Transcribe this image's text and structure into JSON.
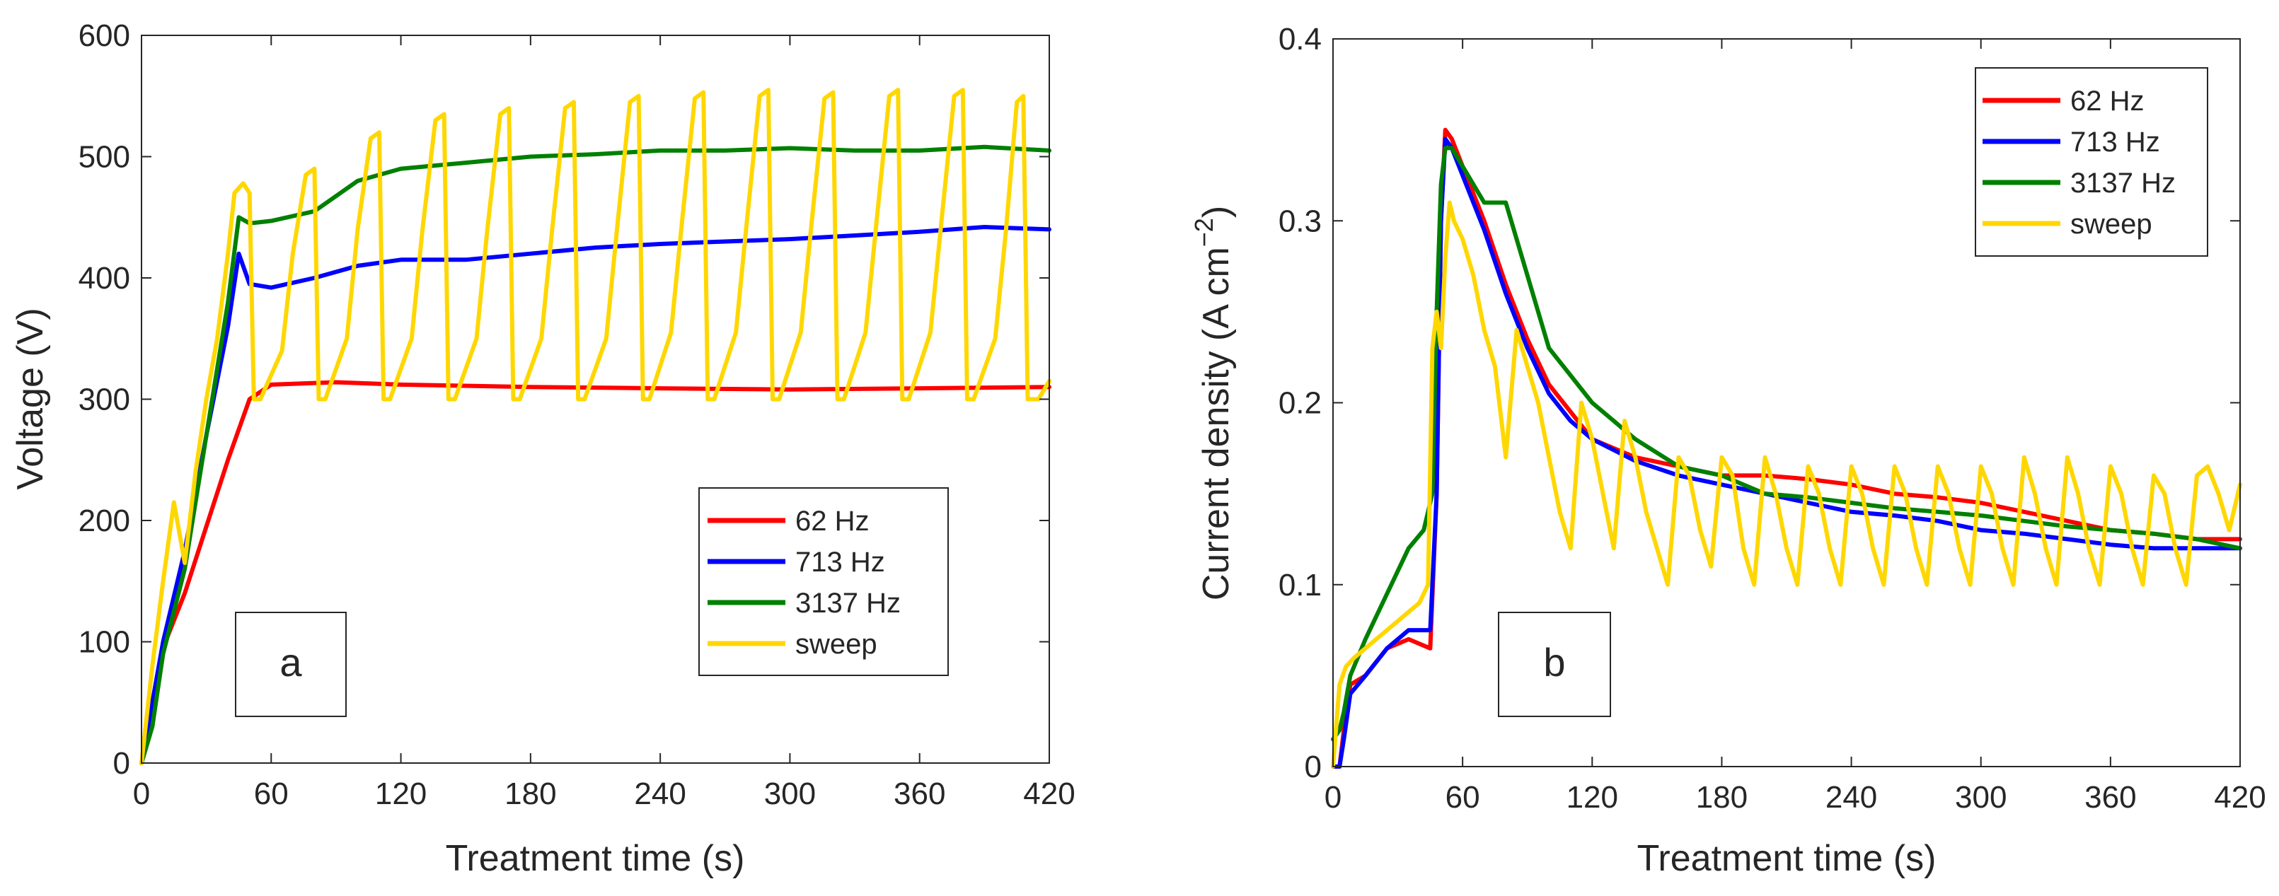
{
  "colors": {
    "s62": "#ff0000",
    "s713": "#0000ff",
    "s3137": "#008000",
    "sweep": "#ffd700",
    "axis": "#262626"
  },
  "chart_data": [
    {
      "id": "a",
      "type": "line",
      "panel_label": "a",
      "title": "",
      "xlabel": "Treatment time (s)",
      "ylabel": "Voltage (V)",
      "xlim": [
        0,
        420
      ],
      "ylim": [
        0,
        600
      ],
      "xticks": [
        0,
        60,
        120,
        180,
        240,
        300,
        360,
        420
      ],
      "yticks": [
        0,
        100,
        200,
        300,
        400,
        500,
        600
      ],
      "ytick_labels": [
        "0",
        "100",
        "200",
        "300",
        "400",
        "500",
        "600"
      ],
      "legend_position": "bottom-right",
      "series": [
        {
          "name": "62 Hz",
          "color_key": "s62",
          "x": [
            0,
            5,
            10,
            20,
            30,
            40,
            50,
            60,
            90,
            120,
            180,
            240,
            300,
            360,
            420
          ],
          "y": [
            0,
            50,
            95,
            140,
            195,
            250,
            300,
            312,
            314,
            312,
            310,
            309,
            308,
            309,
            310
          ]
        },
        {
          "name": "713 Hz",
          "color_key": "s713",
          "x": [
            0,
            5,
            10,
            20,
            30,
            40,
            45,
            50,
            60,
            80,
            100,
            120,
            150,
            180,
            210,
            240,
            270,
            300,
            330,
            360,
            390,
            420
          ],
          "y": [
            0,
            50,
            100,
            175,
            270,
            360,
            420,
            395,
            392,
            400,
            410,
            415,
            415,
            420,
            425,
            428,
            430,
            432,
            435,
            438,
            442,
            440
          ]
        },
        {
          "name": "3137 Hz",
          "color_key": "s3137",
          "x": [
            0,
            5,
            10,
            20,
            30,
            40,
            45,
            50,
            60,
            80,
            100,
            120,
            150,
            180,
            210,
            240,
            270,
            300,
            330,
            360,
            390,
            420
          ],
          "y": [
            0,
            30,
            90,
            160,
            270,
            380,
            450,
            445,
            447,
            455,
            480,
            490,
            495,
            500,
            502,
            505,
            505,
            507,
            505,
            505,
            508,
            505
          ]
        },
        {
          "name": "sweep",
          "color_key": "sweep",
          "x": [
            0,
            5,
            10,
            15,
            20,
            25,
            30,
            35,
            40,
            43,
            47,
            50,
            52,
            55,
            65,
            70,
            76,
            80,
            82,
            85,
            95,
            100,
            106,
            110,
            112,
            115,
            125,
            130,
            136,
            140,
            142,
            145,
            155,
            160,
            166,
            170,
            172,
            175,
            185,
            190,
            196,
            200,
            202,
            205,
            215,
            220,
            226,
            230,
            232,
            235,
            245,
            250,
            256,
            260,
            262,
            265,
            275,
            280,
            286,
            290,
            292,
            295,
            305,
            310,
            316,
            320,
            322,
            325,
            335,
            340,
            346,
            350,
            352,
            355,
            365,
            370,
            376,
            380,
            382,
            385,
            395,
            400,
            405,
            408,
            410,
            412,
            415,
            420
          ],
          "y": [
            0,
            80,
            150,
            215,
            165,
            240,
            300,
            350,
            420,
            470,
            478,
            470,
            300,
            300,
            340,
            420,
            485,
            490,
            300,
            300,
            350,
            440,
            515,
            520,
            300,
            300,
            350,
            440,
            530,
            535,
            300,
            300,
            350,
            440,
            535,
            540,
            300,
            300,
            350,
            440,
            540,
            545,
            300,
            300,
            350,
            440,
            545,
            550,
            300,
            300,
            355,
            445,
            548,
            553,
            300,
            300,
            355,
            445,
            550,
            555,
            300,
            300,
            355,
            445,
            548,
            553,
            300,
            300,
            355,
            445,
            550,
            555,
            300,
            300,
            355,
            445,
            550,
            555,
            300,
            300,
            350,
            440,
            545,
            550,
            300,
            300,
            300,
            315
          ]
        }
      ]
    },
    {
      "id": "b",
      "type": "line",
      "panel_label": "b",
      "title": "",
      "xlabel": "Treatment time (s)",
      "ylabel": "Current density (A cm",
      "ylabel_sup": "−2",
      "ylabel_end": ")",
      "xlim": [
        0,
        420
      ],
      "ylim": [
        0,
        0.4
      ],
      "xticks": [
        0,
        60,
        120,
        180,
        240,
        300,
        360,
        420
      ],
      "yticks": [
        0,
        0.1,
        0.2,
        0.3,
        0.4
      ],
      "ytick_labels": [
        "0",
        "0.1",
        "0.2",
        "0.3",
        "0.4"
      ],
      "legend_position": "top-right",
      "series": [
        {
          "name": "62 Hz",
          "color_key": "s62",
          "x": [
            0,
            3,
            5,
            8,
            15,
            25,
            35,
            45,
            48,
            50,
            52,
            55,
            60,
            70,
            80,
            90,
            100,
            110,
            120,
            140,
            160,
            180,
            200,
            220,
            240,
            260,
            280,
            300,
            320,
            340,
            360,
            380,
            400,
            420
          ],
          "y": [
            0,
            0.0,
            0.02,
            0.045,
            0.05,
            0.065,
            0.07,
            0.065,
            0.15,
            0.3,
            0.35,
            0.345,
            0.33,
            0.3,
            0.265,
            0.235,
            0.21,
            0.195,
            0.18,
            0.17,
            0.165,
            0.16,
            0.16,
            0.158,
            0.155,
            0.15,
            0.148,
            0.145,
            0.14,
            0.135,
            0.13,
            0.128,
            0.125,
            0.125
          ]
        },
        {
          "name": "713 Hz",
          "color_key": "s713",
          "x": [
            0,
            3,
            5,
            8,
            15,
            25,
            35,
            45,
            48,
            50,
            52,
            55,
            60,
            70,
            80,
            90,
            100,
            110,
            120,
            140,
            160,
            180,
            200,
            220,
            240,
            260,
            280,
            300,
            320,
            340,
            360,
            380,
            400,
            420
          ],
          "y": [
            0,
            0.0,
            0.015,
            0.04,
            0.05,
            0.065,
            0.075,
            0.075,
            0.15,
            0.3,
            0.345,
            0.34,
            0.325,
            0.295,
            0.26,
            0.23,
            0.205,
            0.19,
            0.18,
            0.168,
            0.16,
            0.155,
            0.15,
            0.145,
            0.14,
            0.138,
            0.135,
            0.13,
            0.128,
            0.125,
            0.122,
            0.12,
            0.12,
            0.12
          ]
        },
        {
          "name": "3137 Hz",
          "color_key": "s3137",
          "x": [
            0,
            3,
            5,
            8,
            15,
            25,
            35,
            42,
            46,
            48,
            50,
            52,
            55,
            60,
            70,
            80,
            90,
            100,
            110,
            120,
            140,
            160,
            180,
            200,
            220,
            240,
            260,
            280,
            300,
            320,
            340,
            360,
            380,
            400,
            420
          ],
          "y": [
            0.015,
            0.02,
            0.03,
            0.05,
            0.07,
            0.095,
            0.12,
            0.13,
            0.15,
            0.25,
            0.32,
            0.34,
            0.34,
            0.33,
            0.31,
            0.31,
            0.27,
            0.23,
            0.215,
            0.2,
            0.18,
            0.165,
            0.16,
            0.15,
            0.148,
            0.145,
            0.142,
            0.14,
            0.138,
            0.135,
            0.132,
            0.13,
            0.128,
            0.125,
            0.12
          ]
        },
        {
          "name": "sweep",
          "color_key": "sweep",
          "x": [
            0,
            3,
            6,
            10,
            15,
            20,
            25,
            30,
            35,
            40,
            44,
            46,
            48,
            50,
            52,
            54,
            56,
            60,
            65,
            70,
            75,
            80,
            85,
            90,
            95,
            100,
            105,
            110,
            115,
            120,
            125,
            130,
            135,
            140,
            145,
            150,
            155,
            160,
            165,
            170,
            175,
            180,
            185,
            190,
            195,
            200,
            205,
            210,
            215,
            220,
            225,
            230,
            235,
            240,
            245,
            250,
            255,
            260,
            265,
            270,
            275,
            280,
            285,
            290,
            295,
            300,
            305,
            310,
            315,
            320,
            325,
            330,
            335,
            340,
            345,
            350,
            355,
            360,
            365,
            370,
            375,
            380,
            385,
            390,
            395,
            400,
            405,
            410,
            415,
            420
          ],
          "y": [
            0,
            0.045,
            0.055,
            0.06,
            0.065,
            0.07,
            0.075,
            0.08,
            0.085,
            0.09,
            0.1,
            0.23,
            0.25,
            0.23,
            0.28,
            0.31,
            0.3,
            0.29,
            0.27,
            0.24,
            0.22,
            0.17,
            0.24,
            0.22,
            0.2,
            0.17,
            0.14,
            0.12,
            0.2,
            0.18,
            0.15,
            0.12,
            0.19,
            0.17,
            0.14,
            0.12,
            0.1,
            0.17,
            0.16,
            0.13,
            0.11,
            0.17,
            0.16,
            0.12,
            0.1,
            0.17,
            0.15,
            0.12,
            0.1,
            0.165,
            0.15,
            0.12,
            0.1,
            0.165,
            0.15,
            0.12,
            0.1,
            0.165,
            0.15,
            0.12,
            0.1,
            0.165,
            0.15,
            0.12,
            0.1,
            0.165,
            0.15,
            0.12,
            0.1,
            0.17,
            0.15,
            0.12,
            0.1,
            0.17,
            0.15,
            0.12,
            0.1,
            0.165,
            0.15,
            0.12,
            0.1,
            0.16,
            0.15,
            0.12,
            0.1,
            0.16,
            0.165,
            0.15,
            0.13,
            0.155
          ]
        }
      ]
    }
  ]
}
